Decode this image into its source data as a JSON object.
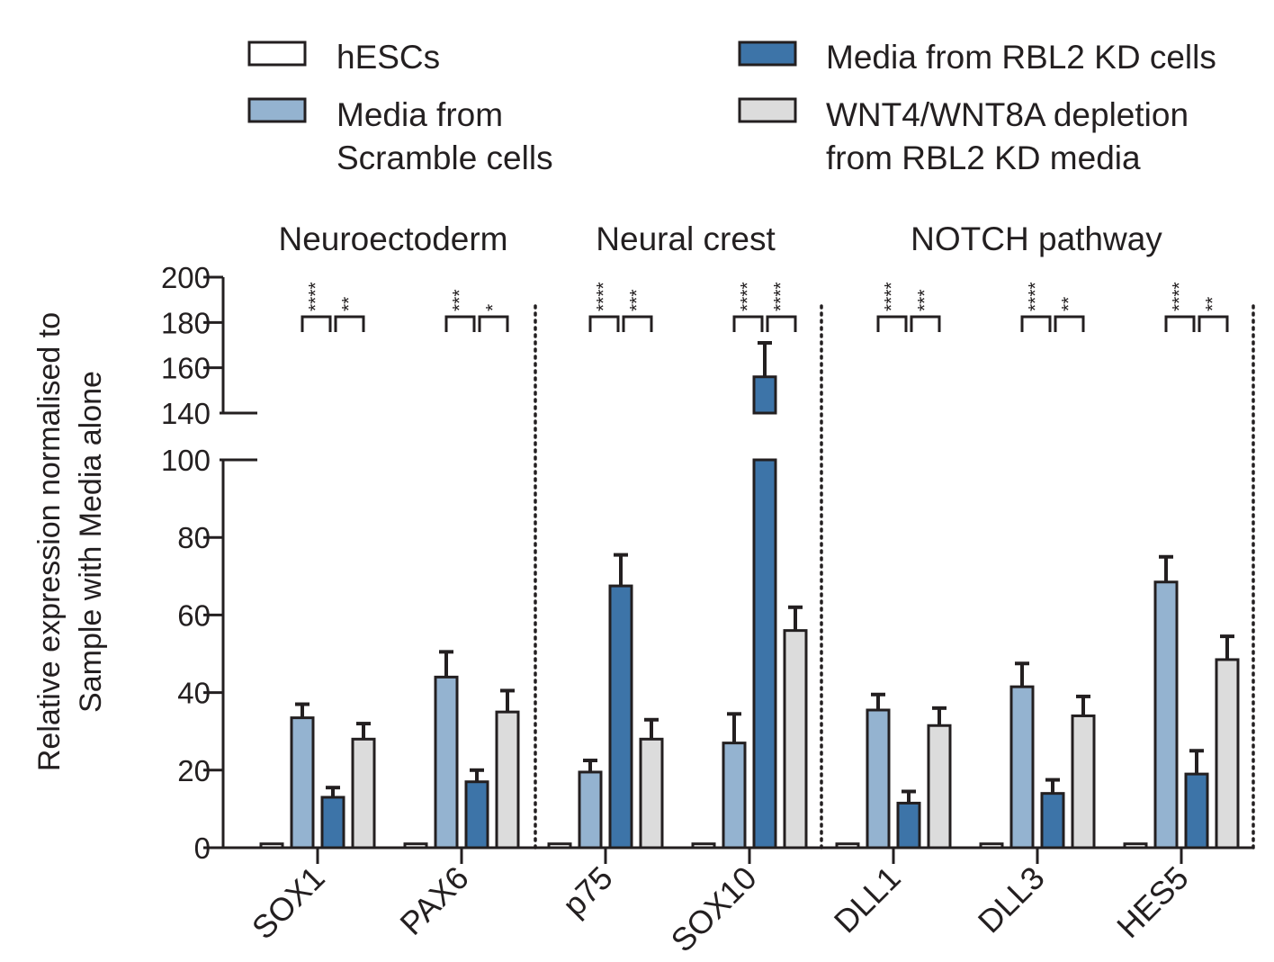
{
  "chart_data": {
    "type": "bar",
    "title": "",
    "ylabel_lines": [
      "Relative expression normalised to",
      "Sample with Media alone"
    ],
    "xlabel": "",
    "axis_break": {
      "lower_max": 100,
      "upper_min": 140
    },
    "ylim": [
      0,
      200
    ],
    "yticks": [
      0,
      20,
      40,
      60,
      80,
      100,
      140,
      160,
      180,
      200
    ],
    "categories": [
      "SOX1",
      "PAX6",
      "p75",
      "SOX10",
      "DLL1",
      "DLL3",
      "HES5"
    ],
    "groups": [
      {
        "label": "Neuroectoderm",
        "categories": [
          "SOX1",
          "PAX6"
        ]
      },
      {
        "label": "Neural crest",
        "categories": [
          "p75",
          "SOX10"
        ]
      },
      {
        "label": "NOTCH pathway",
        "categories": [
          "DLL1",
          "DLL3",
          "HES5"
        ]
      }
    ],
    "series": [
      {
        "name": "hESCs",
        "color": "#ffffff",
        "values": [
          1,
          1,
          1,
          1,
          1,
          1,
          1
        ],
        "errors": [
          0,
          0,
          0,
          0,
          0,
          0,
          0
        ]
      },
      {
        "name": "Media from Scramble cells",
        "color": "#94b3d0",
        "values": [
          33.5,
          44,
          19.5,
          27,
          35.5,
          41.5,
          68.5
        ],
        "errors": [
          3.5,
          6.5,
          3,
          7.5,
          4,
          6,
          6.5
        ]
      },
      {
        "name": "Media from RBL2 KD cells",
        "color": "#3d74a8",
        "values": [
          13,
          17,
          67.5,
          156,
          11.5,
          14,
          19
        ],
        "errors": [
          2.5,
          3,
          8,
          15,
          3,
          3.5,
          6
        ]
      },
      {
        "name": "WNT4/WNT8A depletion from RBL2 KD media",
        "color": "#dcdcdc",
        "values": [
          28,
          35,
          28,
          56,
          31.5,
          34,
          48.5
        ],
        "errors": [
          4,
          5.5,
          5,
          6,
          4.5,
          5,
          6
        ]
      }
    ],
    "significance": [
      {
        "category": "SOX1",
        "left": "****",
        "right": "**"
      },
      {
        "category": "PAX6",
        "left": "***",
        "right": "*"
      },
      {
        "category": "p75",
        "left": "****",
        "right": "***"
      },
      {
        "category": "SOX10",
        "left": "****",
        "right": "****"
      },
      {
        "category": "DLL1",
        "left": "****",
        "right": "***"
      },
      {
        "category": "DLL3",
        "left": "****",
        "right": "**"
      },
      {
        "category": "HES5",
        "left": "****",
        "right": "**"
      }
    ],
    "legend": {
      "position": "top",
      "entries": [
        {
          "lines": [
            "hESCs"
          ],
          "series": 0
        },
        {
          "lines": [
            "Media from",
            "Scramble cells"
          ],
          "series": 1
        },
        {
          "lines": [
            "Media from RBL2 KD cells"
          ],
          "series": 2
        },
        {
          "lines": [
            "WNT4/WNT8A depletion",
            "from RBL2 KD media"
          ],
          "series": 3
        }
      ]
    }
  }
}
